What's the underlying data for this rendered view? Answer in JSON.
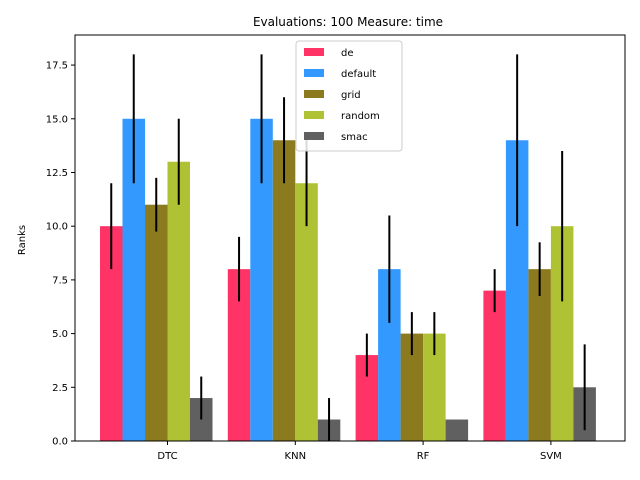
{
  "chart_data": {
    "type": "bar",
    "title": "Evaluations: 100 Measure: time",
    "xlabel": "",
    "ylabel": "Ranks",
    "ylim": [
      0,
      18.9
    ],
    "yticks": [
      0.0,
      2.5,
      5.0,
      7.5,
      10.0,
      12.5,
      15.0,
      17.5
    ],
    "ytick_labels": [
      "0.0",
      "2.5",
      "5.0",
      "7.5",
      "10.0",
      "12.5",
      "15.0",
      "17.5"
    ],
    "categories": [
      "DTC",
      "KNN",
      "RF",
      "SVM"
    ],
    "legend_position": "top-center",
    "grid": false,
    "series": [
      {
        "name": "de",
        "color": "#ff3366",
        "values": [
          10,
          8,
          4,
          7
        ],
        "err_low": [
          8,
          6.5,
          3,
          6
        ],
        "err_high": [
          12,
          9.5,
          5,
          8
        ]
      },
      {
        "name": "default",
        "color": "#3399ff",
        "values": [
          15,
          15,
          8,
          14
        ],
        "err_low": [
          12,
          12,
          5.5,
          10
        ],
        "err_high": [
          18,
          18,
          10.5,
          18
        ]
      },
      {
        "name": "grid",
        "color": "#8b7a1e",
        "values": [
          11,
          14,
          5,
          8
        ],
        "err_low": [
          9.75,
          12,
          4,
          6.75
        ],
        "err_high": [
          12.25,
          16,
          6,
          9.25
        ]
      },
      {
        "name": "random",
        "color": "#aec234",
        "values": [
          13,
          12,
          5,
          10
        ],
        "err_low": [
          11,
          10,
          4,
          6.5
        ],
        "err_high": [
          15,
          14,
          6,
          13.5
        ]
      },
      {
        "name": "smac",
        "color": "#606060",
        "values": [
          2,
          1,
          1,
          2.5
        ],
        "err_low": [
          1,
          0,
          1,
          0.5
        ],
        "err_high": [
          3,
          2,
          1,
          4.5
        ]
      }
    ]
  }
}
